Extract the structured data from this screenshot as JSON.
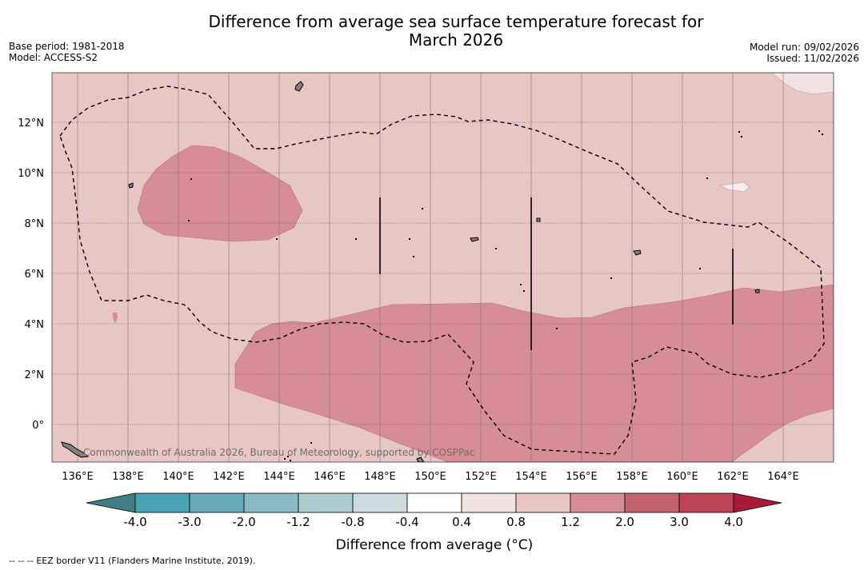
{
  "title": {
    "line1": "Difference from average sea surface temperature forecast for",
    "line2": "March 2026"
  },
  "meta_left": {
    "base_period": "Base period: 1981-2018",
    "model": "Model: ACCESS-S2"
  },
  "meta_right": {
    "model_run": "Model run: 09/02/2026",
    "issued": "Issued: 11/02/2026"
  },
  "map": {
    "lat_labels": [
      "12°N",
      "10°N",
      "8°N",
      "6°N",
      "4°N",
      "2°N",
      "0°"
    ],
    "lon_labels": [
      "136°E",
      "138°E",
      "140°E",
      "142°E",
      "144°E",
      "146°E",
      "148°E",
      "150°E",
      "152°E",
      "154°E",
      "156°E",
      "158°E",
      "160°E",
      "162°E",
      "164°E"
    ],
    "attribution": "Commonwealth of Australia 2026, Bureau of Meteorology, supported by COSPPac",
    "colors": {
      "bin_0_4_to_0_8": "#f1e3e3",
      "bin_0_8_to_1_2": "#e7c6c3",
      "bin_1_2_to_2_0": "#d68d96",
      "land": "#808080"
    }
  },
  "colorbar": {
    "tick_labels": [
      "-4.0",
      "-3.0",
      "-2.0",
      "-1.2",
      "-0.8",
      "-0.4",
      "0.4",
      "0.8",
      "1.2",
      "2.0",
      "3.0",
      "4.0"
    ],
    "colors": [
      "#407f86",
      "#4aa2b3",
      "#67a9b9",
      "#8ab8c3",
      "#acccd1",
      "#cbdbde",
      "#ffffff",
      "#f1e3e3",
      "#e7c6c3",
      "#d68d96",
      "#c4636f",
      "#bd4456",
      "#a91a39"
    ],
    "label": "Difference from average (°C)"
  },
  "footer": {
    "legend_symbol": "-- -- --",
    "eez_text": "EEZ border V11 (Flanders Marine Institute, 2019)."
  }
}
